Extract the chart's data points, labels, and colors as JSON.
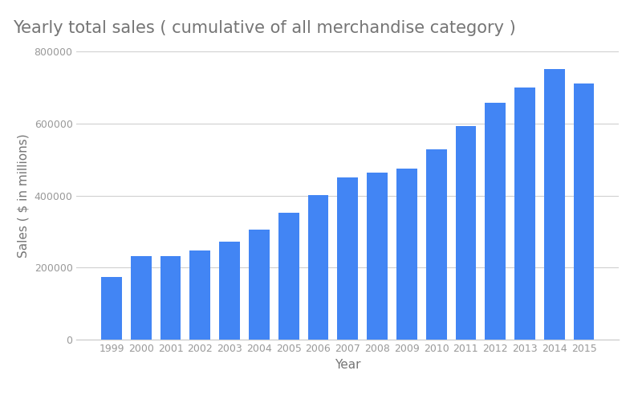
{
  "title": "Yearly total sales ( cumulative of all merchandise category )",
  "xlabel": "Year",
  "ylabel": "Sales ( $ in millions)",
  "years": [
    1999,
    2000,
    2001,
    2002,
    2003,
    2004,
    2005,
    2006,
    2007,
    2008,
    2009,
    2010,
    2011,
    2012,
    2013,
    2014,
    2015
  ],
  "values": [
    175000,
    232000,
    231000,
    248000,
    273000,
    305000,
    352000,
    402000,
    451000,
    463000,
    474000,
    528000,
    592000,
    657000,
    700000,
    752000,
    710000
  ],
  "bar_color": "#4285F4",
  "ylim": [
    0,
    800000
  ],
  "yticks": [
    0,
    200000,
    400000,
    600000,
    800000
  ],
  "background_color": "#ffffff",
  "grid_color": "#d0d0d0",
  "title_fontsize": 15,
  "label_fontsize": 11,
  "tick_fontsize": 9,
  "title_color": "#757575",
  "axis_label_color": "#757575",
  "tick_color": "#999999"
}
